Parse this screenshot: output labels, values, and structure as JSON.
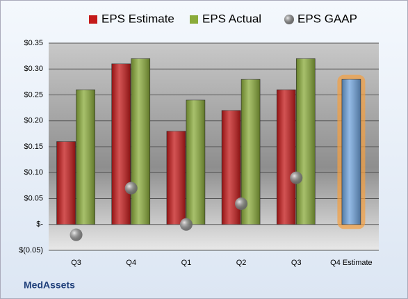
{
  "chart_data": {
    "type": "bar",
    "footer": "MedAssets",
    "categories": [
      "Q3",
      "Q4",
      "Q1",
      "Q2",
      "Q3",
      "Q4 Estimate"
    ],
    "series": [
      {
        "name": "EPS Estimate",
        "color": "#c41a1a",
        "values": [
          0.16,
          0.31,
          0.18,
          0.22,
          0.26,
          0.28
        ],
        "point_colors": [
          null,
          null,
          null,
          null,
          null,
          "#6fa3dc"
        ]
      },
      {
        "name": "EPS Actual",
        "color": "#8aab3a",
        "values": [
          0.26,
          0.32,
          0.24,
          0.28,
          0.32,
          null
        ]
      },
      {
        "name": "EPS GAAP",
        "color": "#9a9a9a",
        "values": [
          -0.02,
          0.07,
          0.0,
          0.04,
          0.09,
          null
        ],
        "marker": "circle"
      }
    ],
    "ylim": [
      -0.05,
      0.35
    ],
    "yticks": [
      {
        "value": -0.05,
        "label": "$(0.05)"
      },
      {
        "value": 0,
        "label": "$-"
      },
      {
        "value": 0.05,
        "label": "$0.05"
      },
      {
        "value": 0.1,
        "label": "$0.10"
      },
      {
        "value": 0.15,
        "label": "$0.15"
      },
      {
        "value": 0.2,
        "label": "$0.20"
      },
      {
        "value": 0.25,
        "label": "$0.25"
      },
      {
        "value": 0.3,
        "label": "$0.30"
      },
      {
        "value": 0.35,
        "label": "$0.35"
      }
    ],
    "grid": true,
    "legend": "top"
  }
}
